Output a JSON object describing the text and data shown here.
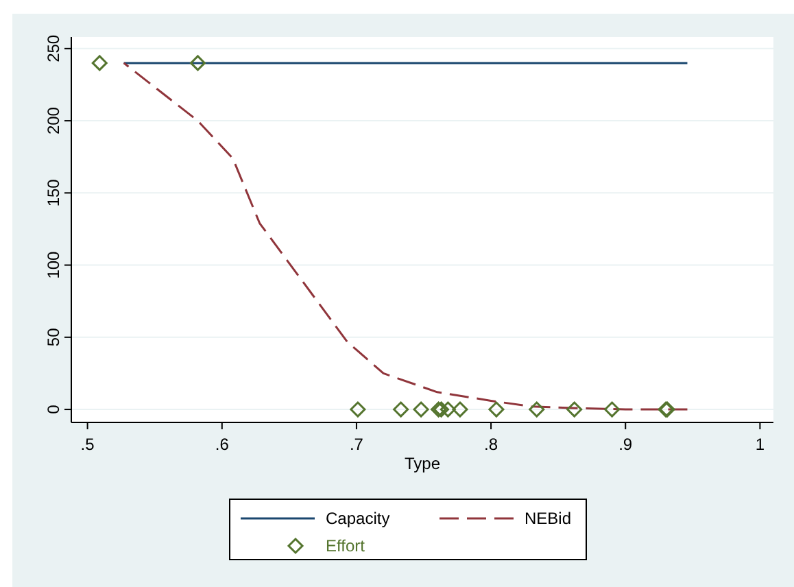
{
  "chart_data": {
    "type": "line",
    "xlabel": "Type",
    "xlim": [
      0.49,
      1.01
    ],
    "xticks": [
      {
        "value": 0.5,
        "label": ".5"
      },
      {
        "value": 0.6,
        "label": ".6"
      },
      {
        "value": 0.7,
        "label": ".7"
      },
      {
        "value": 0.8,
        "label": ".8"
      },
      {
        "value": 0.9,
        "label": ".9"
      },
      1
    ],
    "ylim": [
      -9,
      258
    ],
    "yticks": [
      0,
      50,
      100,
      150,
      200,
      250
    ],
    "grid": "y",
    "legend": "bottom",
    "series": [
      {
        "name": "Capacity",
        "type": "line",
        "color": "#1a476f",
        "line_style": "solid",
        "x": [
          0.527,
          0.946
        ],
        "values": [
          240,
          240
        ]
      },
      {
        "name": "NEBid",
        "type": "line",
        "color": "#90353b",
        "line_style": "dashed",
        "x": [
          0.527,
          0.582,
          0.608,
          0.628,
          0.693,
          0.72,
          0.76,
          0.8,
          0.83,
          0.86,
          0.9,
          0.946
        ],
        "values": [
          240,
          200,
          174,
          129,
          47,
          25,
          12,
          6,
          2,
          1,
          0,
          0
        ]
      },
      {
        "name": "Effort",
        "type": "scatter",
        "marker": "diamond",
        "color": "#55752f",
        "x": [
          0.509,
          0.582,
          0.701,
          0.733,
          0.748,
          0.761,
          0.763,
          0.768,
          0.777,
          0.804,
          0.834,
          0.862,
          0.89,
          0.93,
          0.931
        ],
        "values": [
          240,
          240,
          0,
          0,
          0,
          0,
          0,
          0,
          0,
          0,
          0,
          0,
          0,
          0,
          0
        ]
      }
    ]
  }
}
